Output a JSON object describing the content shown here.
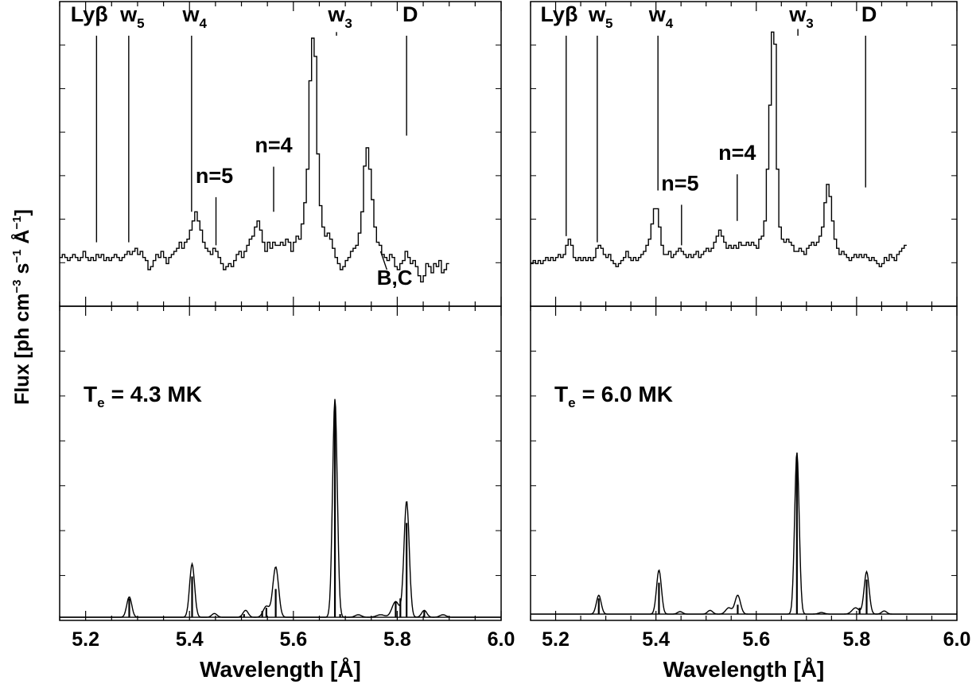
{
  "figure": {
    "ylabel_parts": [
      "Flux [ph cm",
      "−3",
      " s",
      "−1",
      " Å",
      "−1",
      "]"
    ]
  },
  "chart_data": [
    {
      "id": "left",
      "type": "line",
      "xlabel": "Wavelength [Å]",
      "xlim": [
        5.15,
        6.0
      ],
      "xticks": [
        5.2,
        5.4,
        5.6,
        5.8,
        6.0
      ],
      "xtick_labels": [
        "5.2",
        "5.4",
        "5.6",
        "5.8",
        "6.0"
      ],
      "top": {
        "description": "observed spectrum (histogram)",
        "ylim": [
          0,
          1
        ],
        "x_start": 5.15,
        "x_step": 0.005,
        "y": [
          0.16,
          0.17,
          0.16,
          0.15,
          0.16,
          0.17,
          0.16,
          0.15,
          0.16,
          0.18,
          0.16,
          0.15,
          0.16,
          0.15,
          0.17,
          0.16,
          0.17,
          0.15,
          0.16,
          0.15,
          0.16,
          0.17,
          0.16,
          0.15,
          0.16,
          0.17,
          0.18,
          0.17,
          0.18,
          0.19,
          0.17,
          0.18,
          0.16,
          0.15,
          0.12,
          0.13,
          0.15,
          0.17,
          0.16,
          0.18,
          0.16,
          0.14,
          0.16,
          0.17,
          0.18,
          0.19,
          0.21,
          0.19,
          0.21,
          0.22,
          0.25,
          0.28,
          0.31,
          0.28,
          0.25,
          0.21,
          0.19,
          0.18,
          0.17,
          0.19,
          0.18,
          0.16,
          0.14,
          0.12,
          0.13,
          0.14,
          0.13,
          0.15,
          0.17,
          0.18,
          0.16,
          0.18,
          0.2,
          0.22,
          0.23,
          0.26,
          0.28,
          0.25,
          0.21,
          0.18,
          0.21,
          0.19,
          0.21,
          0.2,
          0.2,
          0.21,
          0.2,
          0.22,
          0.21,
          0.18,
          0.21,
          0.23,
          0.22,
          0.27,
          0.34,
          0.45,
          0.74,
          0.88,
          0.82,
          0.5,
          0.33,
          0.26,
          0.23,
          0.24,
          0.22,
          0.19,
          0.16,
          0.14,
          0.12,
          0.13,
          0.15,
          0.16,
          0.18,
          0.19,
          0.2,
          0.24,
          0.31,
          0.46,
          0.52,
          0.45,
          0.35,
          0.26,
          0.21,
          0.2,
          0.17,
          0.16,
          0.15,
          0.17,
          0.16,
          0.13,
          0.12,
          0.14,
          0.15,
          0.18,
          0.16,
          0.14,
          0.15,
          0.13,
          0.1,
          0.08,
          0.1,
          0.14,
          0.13,
          0.11,
          0.14,
          0.13,
          0.15,
          0.11,
          0.12,
          0.14
        ]
      },
      "bottom": {
        "description": "model spectrum (Gaussian-broadened envelope and discrete line sticks)",
        "ylim": [
          0,
          1
        ],
        "baseline": 0.01,
        "temperature_label": "T",
        "temperature_subscript": "e",
        "temperature_value": "= 4.3 MK",
        "peaks": [
          {
            "x": 5.284,
            "height": 0.065,
            "width": 0.0048
          },
          {
            "x": 5.405,
            "height": 0.17,
            "width": 0.0048
          },
          {
            "x": 5.448,
            "height": 0.012,
            "width": 0.005
          },
          {
            "x": 5.508,
            "height": 0.022,
            "width": 0.005
          },
          {
            "x": 5.548,
            "height": 0.035,
            "width": 0.006
          },
          {
            "x": 5.566,
            "height": 0.16,
            "width": 0.0055
          },
          {
            "x": 5.68,
            "height": 0.695,
            "width": 0.0045
          },
          {
            "x": 5.725,
            "height": 0.008,
            "width": 0.006
          },
          {
            "x": 5.768,
            "height": 0.008,
            "width": 0.008
          },
          {
            "x": 5.797,
            "height": 0.05,
            "width": 0.007
          },
          {
            "x": 5.818,
            "height": 0.37,
            "width": 0.005
          },
          {
            "x": 5.852,
            "height": 0.022,
            "width": 0.005
          },
          {
            "x": 5.888,
            "height": 0.008,
            "width": 0.006
          }
        ],
        "sticks": [
          {
            "x": 5.284,
            "height": 0.06
          },
          {
            "x": 5.405,
            "height": 0.13
          },
          {
            "x": 5.505,
            "height": 0.01
          },
          {
            "x": 5.54,
            "height": 0.02
          },
          {
            "x": 5.548,
            "height": 0.03
          },
          {
            "x": 5.566,
            "height": 0.09
          },
          {
            "x": 5.68,
            "height": 0.67
          },
          {
            "x": 5.69,
            "height": 0.01
          },
          {
            "x": 5.797,
            "height": 0.05
          },
          {
            "x": 5.806,
            "height": 0.06
          },
          {
            "x": 5.818,
            "height": 0.3
          },
          {
            "x": 5.852,
            "height": 0.02
          }
        ]
      },
      "line_ids": [
        {
          "label": "Lyβ",
          "sub": "",
          "x": 5.221,
          "label_x": 5.207,
          "top": 0.935,
          "bottom": 0.21
        },
        {
          "label": "w",
          "sub": "5",
          "x": 5.283,
          "label_x": 5.29,
          "top": 0.935,
          "bottom": 0.21
        },
        {
          "label": "w",
          "sub": "4",
          "x": 5.404,
          "label_x": 5.41,
          "top": 0.935,
          "bottom": 0.31
        },
        {
          "label": "n=5",
          "sub": "",
          "x": 5.451,
          "label_x": 5.448,
          "top": 0.405,
          "bottom": 0.2
        },
        {
          "label": "n=4",
          "sub": "",
          "x": 5.562,
          "label_x": 5.562,
          "top": 0.505,
          "bottom": 0.31
        },
        {
          "label": "w",
          "sub": "3",
          "x": 5.683,
          "label_x": 5.69,
          "top": 0.935,
          "bottom": 0.9
        },
        {
          "label": "D",
          "sub": "",
          "x": 5.818,
          "label_x": 5.825,
          "top": 0.935,
          "bottom": 0.56
        }
      ],
      "annotation": {
        "label": "B,C",
        "text_x": 5.795,
        "text_y": 0.07,
        "line_from": [
          5.78,
          0.12
        ],
        "line_to": [
          5.768,
          0.18
        ]
      }
    },
    {
      "id": "right",
      "type": "line",
      "xlabel": "Wavelength [Å]",
      "xlim": [
        5.15,
        6.0
      ],
      "xticks": [
        5.2,
        5.4,
        5.6,
        5.8,
        6.0
      ],
      "xtick_labels": [
        "5.2",
        "5.4",
        "5.6",
        "5.8",
        "6.0"
      ],
      "top": {
        "description": "observed spectrum (histogram)",
        "ylim": [
          0,
          1
        ],
        "x_start": 5.15,
        "x_step": 0.005,
        "y": [
          0.14,
          0.15,
          0.14,
          0.15,
          0.14,
          0.15,
          0.16,
          0.15,
          0.16,
          0.15,
          0.16,
          0.17,
          0.16,
          0.17,
          0.2,
          0.22,
          0.2,
          0.16,
          0.15,
          0.16,
          0.15,
          0.16,
          0.15,
          0.16,
          0.15,
          0.16,
          0.19,
          0.2,
          0.19,
          0.17,
          0.16,
          0.17,
          0.15,
          0.14,
          0.13,
          0.14,
          0.15,
          0.16,
          0.18,
          0.16,
          0.15,
          0.16,
          0.15,
          0.16,
          0.17,
          0.18,
          0.2,
          0.22,
          0.27,
          0.32,
          0.32,
          0.26,
          0.2,
          0.17,
          0.17,
          0.18,
          0.16,
          0.17,
          0.18,
          0.19,
          0.18,
          0.17,
          0.16,
          0.17,
          0.16,
          0.17,
          0.18,
          0.16,
          0.17,
          0.18,
          0.19,
          0.18,
          0.19,
          0.21,
          0.23,
          0.25,
          0.23,
          0.21,
          0.19,
          0.2,
          0.19,
          0.2,
          0.19,
          0.21,
          0.2,
          0.2,
          0.21,
          0.2,
          0.21,
          0.2,
          0.19,
          0.22,
          0.23,
          0.28,
          0.45,
          0.66,
          0.9,
          0.86,
          0.45,
          0.26,
          0.22,
          0.21,
          0.22,
          0.21,
          0.2,
          0.18,
          0.18,
          0.19,
          0.18,
          0.17,
          0.19,
          0.2,
          0.21,
          0.2,
          0.21,
          0.23,
          0.26,
          0.34,
          0.4,
          0.36,
          0.28,
          0.22,
          0.19,
          0.17,
          0.18,
          0.17,
          0.16,
          0.15,
          0.16,
          0.17,
          0.16,
          0.17,
          0.16,
          0.17,
          0.16,
          0.15,
          0.16,
          0.15,
          0.14,
          0.13,
          0.14,
          0.16,
          0.15,
          0.17,
          0.16,
          0.15,
          0.17,
          0.18,
          0.19,
          0.2
        ]
      },
      "bottom": {
        "description": "model spectrum (Gaussian-broadened envelope and discrete line sticks)",
        "ylim": [
          0,
          1
        ],
        "baseline": 0.02,
        "temperature_label": "T",
        "temperature_subscript": "e",
        "temperature_value": "= 6.0 MK",
        "peaks": [
          {
            "x": 5.286,
            "height": 0.06,
            "width": 0.0048
          },
          {
            "x": 5.406,
            "height": 0.14,
            "width": 0.0048
          },
          {
            "x": 5.448,
            "height": 0.008,
            "width": 0.005
          },
          {
            "x": 5.508,
            "height": 0.012,
            "width": 0.005
          },
          {
            "x": 5.545,
            "height": 0.02,
            "width": 0.006
          },
          {
            "x": 5.563,
            "height": 0.06,
            "width": 0.0055
          },
          {
            "x": 5.681,
            "height": 0.515,
            "width": 0.0045
          },
          {
            "x": 5.73,
            "height": 0.005,
            "width": 0.006
          },
          {
            "x": 5.798,
            "height": 0.02,
            "width": 0.007
          },
          {
            "x": 5.82,
            "height": 0.135,
            "width": 0.005
          },
          {
            "x": 5.855,
            "height": 0.01,
            "width": 0.005
          }
        ],
        "sticks": [
          {
            "x": 5.286,
            "height": 0.05
          },
          {
            "x": 5.406,
            "height": 0.1
          },
          {
            "x": 5.563,
            "height": 0.03
          },
          {
            "x": 5.681,
            "height": 0.5
          },
          {
            "x": 5.806,
            "height": 0.02
          },
          {
            "x": 5.82,
            "height": 0.11
          }
        ]
      },
      "line_ids": [
        {
          "label": "Lyβ",
          "sub": "",
          "x": 5.221,
          "label_x": 5.207,
          "top": 0.935,
          "bottom": 0.23
        },
        {
          "label": "w",
          "sub": "5",
          "x": 5.283,
          "label_x": 5.29,
          "top": 0.935,
          "bottom": 0.21
        },
        {
          "label": "w",
          "sub": "4",
          "x": 5.404,
          "label_x": 5.41,
          "top": 0.935,
          "bottom": 0.38
        },
        {
          "label": "n=5",
          "sub": "",
          "x": 5.451,
          "label_x": 5.448,
          "top": 0.38,
          "bottom": 0.2
        },
        {
          "label": "n=4",
          "sub": "",
          "x": 5.562,
          "label_x": 5.562,
          "top": 0.48,
          "bottom": 0.28
        },
        {
          "label": "w",
          "sub": "3",
          "x": 5.683,
          "label_x": 5.69,
          "top": 0.935,
          "bottom": 0.91
        },
        {
          "label": "D",
          "sub": "",
          "x": 5.818,
          "label_x": 5.825,
          "top": 0.935,
          "bottom": 0.39
        }
      ],
      "annotation": null
    }
  ]
}
